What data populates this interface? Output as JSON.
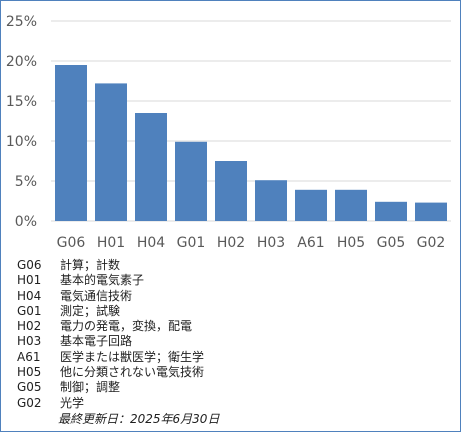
{
  "chart_data": {
    "type": "bar",
    "categories": [
      "G06",
      "H01",
      "H04",
      "G01",
      "H02",
      "H03",
      "A61",
      "H05",
      "G05",
      "G02"
    ],
    "values": [
      19.5,
      17.2,
      13.5,
      9.9,
      7.5,
      5.1,
      3.9,
      3.9,
      2.4,
      2.3
    ],
    "yticks": [
      "0%",
      "5%",
      "10%",
      "15%",
      "20%",
      "25%"
    ],
    "ylim": [
      0,
      25
    ],
    "grid": true,
    "bar_color": "#4f81bd",
    "grid_color": "#d9d9d9"
  },
  "legend": [
    {
      "code": "G06",
      "desc": "計算；計数"
    },
    {
      "code": "H01",
      "desc": "基本的電気素子"
    },
    {
      "code": "H04",
      "desc": "電気通信技術"
    },
    {
      "code": "G01",
      "desc": "測定；試験"
    },
    {
      "code": "H02",
      "desc": "電力の発電，変換，配電"
    },
    {
      "code": "H03",
      "desc": "基本電子回路"
    },
    {
      "code": "A61",
      "desc": "医学または獣医学；衛生学"
    },
    {
      "code": "H05",
      "desc": "他に分類されない電気技術"
    },
    {
      "code": "G05",
      "desc": "制御；調整"
    },
    {
      "code": "G02",
      "desc": "光学"
    }
  ],
  "footer": "最終更新日：2025年6月30日"
}
